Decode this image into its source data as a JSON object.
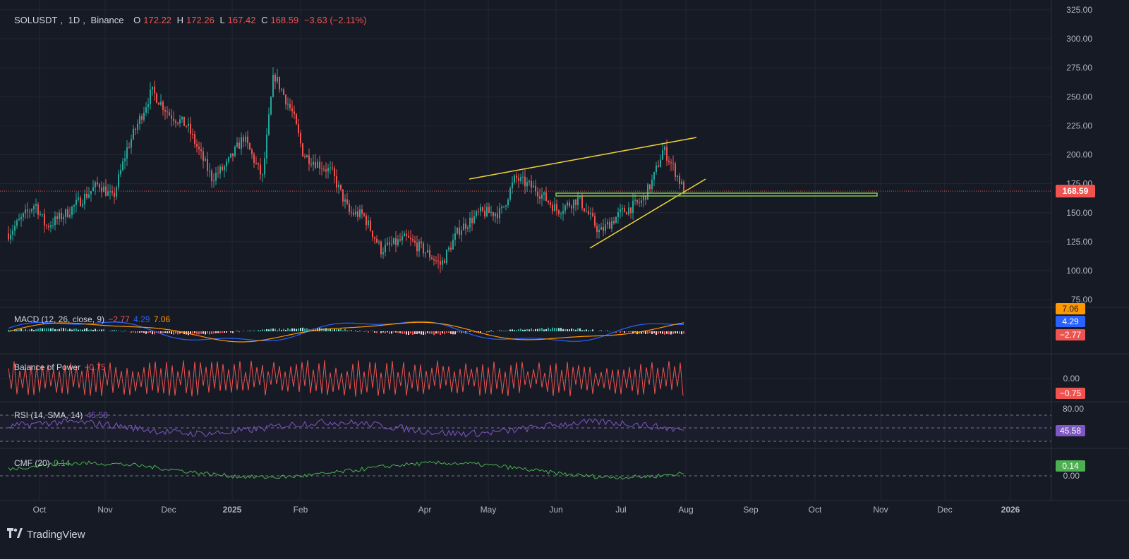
{
  "header": {
    "symbol": "SOLUSDT",
    "interval": "1D",
    "exchange": "Binance",
    "o_label": "O",
    "o": "172.22",
    "h_label": "H",
    "h": "172.26",
    "l_label": "L",
    "l": "167.42",
    "c_label": "C",
    "c": "168.59",
    "change": "−3.63 (−2.11%)"
  },
  "price_axis": {
    "ticks": [
      "325.00",
      "300.00",
      "275.00",
      "250.00",
      "225.00",
      "200.00",
      "175.00",
      "150.00",
      "125.00",
      "100.00",
      "75.00"
    ],
    "last_price": "168.59"
  },
  "macd": {
    "label": "MACD (12, 26, close, 9)",
    "hist": "−2.77",
    "macd": "4.29",
    "signal": "7.06",
    "tag_signal": "7.06",
    "tag_macd": "4.29",
    "tag_hist": "−2.77"
  },
  "bop": {
    "label": "Balance of Power",
    "value": "−0.75",
    "tick": "0.00",
    "tag": "−0.75"
  },
  "rsi": {
    "label": "RSI (14, SMA, 14)",
    "value": "45.58",
    "tick": "80.00",
    "tag": "45.58"
  },
  "cmf": {
    "label": "CMF (20)",
    "value": "0.14",
    "tick": "0.00",
    "tag": "0.14"
  },
  "time_axis": [
    "Oct",
    "Nov",
    "Dec",
    "2025",
    "Feb",
    "Apr",
    "May",
    "Jun",
    "Jul",
    "Aug",
    "Sep",
    "Oct",
    "Nov",
    "Dec",
    "2026"
  ],
  "footer": {
    "brand": "TradingView"
  },
  "colors": {
    "up": "#26a69a",
    "down": "#ef5350",
    "yellow": "#f0d43a",
    "green": "#8bc34a",
    "macd": "#2962ff",
    "signal": "#ff9800",
    "rsi": "#7e57c2",
    "bop": "#ef5350",
    "cmf": "#4caf50"
  }
}
